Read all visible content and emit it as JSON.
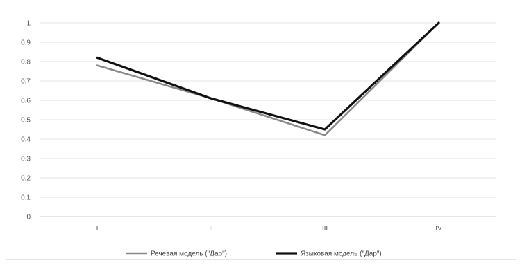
{
  "chart_data": {
    "type": "line",
    "categories": [
      "I",
      "II",
      "III",
      "IV"
    ],
    "series": [
      {
        "name": "Речевая модель (\"Дар\")",
        "values": [
          0.78,
          0.61,
          0.42,
          1.0
        ],
        "color": "#8a8a8a"
      },
      {
        "name": "Языковая модель (\"Дар\")",
        "values": [
          0.82,
          0.61,
          0.45,
          1.0
        ],
        "color": "#111111"
      }
    ],
    "yticks": [
      "0",
      "0.1",
      "0.2",
      "0.3",
      "0.4",
      "0.5",
      "0.6",
      "0.7",
      "0.8",
      "0.9",
      "1"
    ],
    "ylim": [
      0,
      1
    ],
    "grid": true,
    "legend_position": "bottom"
  }
}
